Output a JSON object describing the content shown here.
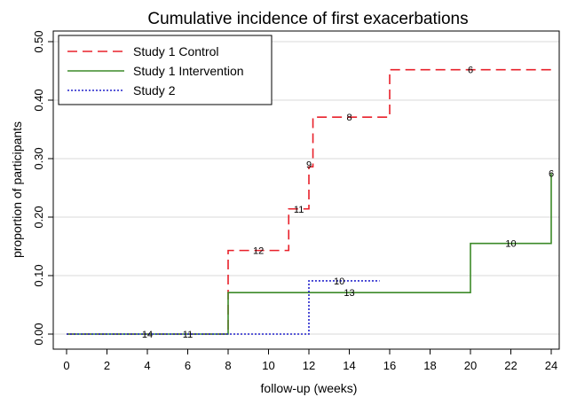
{
  "chart_data": {
    "type": "line",
    "step": true,
    "title": "Cumulative incidence of first exacerbations",
    "xlabel": "follow-up (weeks)",
    "ylabel": "proportion of participants",
    "xlim": [
      0,
      24
    ],
    "ylim": [
      0,
      0.5
    ],
    "xticks": [
      "0",
      "2",
      "4",
      "6",
      "8",
      "10",
      "12",
      "14",
      "16",
      "18",
      "20",
      "22",
      "24"
    ],
    "yticks": [
      "0.00",
      "0.10",
      "0.20",
      "0.30",
      "0.40",
      "0.50"
    ],
    "grid": true,
    "legend_position": "top-left",
    "series": [
      {
        "name": "Study 1 Control",
        "color": "#e8202a",
        "style": "dashed",
        "points": [
          [
            0,
            0
          ],
          [
            8,
            0
          ],
          [
            8,
            0.143
          ],
          [
            11,
            0.143
          ],
          [
            11,
            0.214
          ],
          [
            12,
            0.214
          ],
          [
            12,
            0.286
          ],
          [
            12.2,
            0.286
          ],
          [
            12.2,
            0.371
          ],
          [
            16,
            0.371
          ],
          [
            16,
            0.452
          ],
          [
            24,
            0.452
          ]
        ],
        "labels": [
          {
            "x": 4,
            "y": 0,
            "text": "14"
          },
          {
            "x": 6,
            "y": 0,
            "text": "11"
          },
          {
            "x": 9.5,
            "y": 0.143,
            "text": "12"
          },
          {
            "x": 11.5,
            "y": 0.214,
            "text": "11"
          },
          {
            "x": 12,
            "y": 0.29,
            "text": "9"
          },
          {
            "x": 14,
            "y": 0.371,
            "text": "8"
          },
          {
            "x": 20,
            "y": 0.452,
            "text": "6"
          }
        ]
      },
      {
        "name": "Study 1 Intervention",
        "color": "#3c8a28",
        "style": "solid",
        "points": [
          [
            0,
            0
          ],
          [
            8,
            0
          ],
          [
            8,
            0.071
          ],
          [
            20,
            0.071
          ],
          [
            20,
            0.155
          ],
          [
            24,
            0.155
          ],
          [
            24,
            0.275
          ]
        ],
        "labels": [
          {
            "x": 14,
            "y": 0.071,
            "text": "13"
          },
          {
            "x": 22,
            "y": 0.155,
            "text": "10"
          },
          {
            "x": 24,
            "y": 0.275,
            "text": "6"
          }
        ]
      },
      {
        "name": "Study 2",
        "color": "#2222cc",
        "style": "dotted",
        "points": [
          [
            0,
            0
          ],
          [
            12,
            0
          ],
          [
            12,
            0.091
          ],
          [
            15.5,
            0.091
          ]
        ],
        "labels": [
          {
            "x": 13.5,
            "y": 0.091,
            "text": "10"
          }
        ]
      }
    ]
  }
}
